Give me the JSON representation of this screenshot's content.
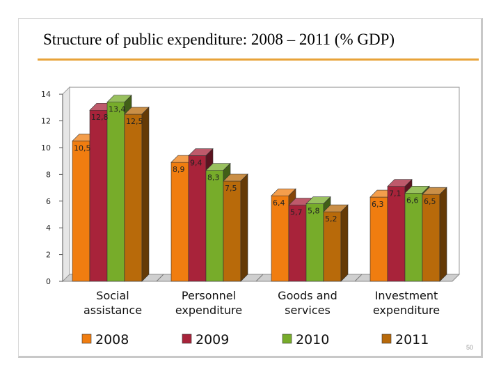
{
  "slide": {
    "title": "Structure of public expenditure: 2008 – 2011 (% GDP)",
    "page_number": "50"
  },
  "chart_data": {
    "type": "bar",
    "title": "",
    "xlabel": "",
    "ylabel": "",
    "ylim": [
      0,
      14
    ],
    "yticks": [
      0,
      2,
      4,
      6,
      8,
      10,
      12,
      14
    ],
    "categories": [
      [
        "Social",
        "assistance"
      ],
      [
        "Personnel",
        "expenditure"
      ],
      [
        "Goods and",
        "services"
      ],
      [
        "Investment",
        "expenditure"
      ]
    ],
    "series": [
      {
        "name": "2008",
        "color": "#f07d10",
        "values": [
          10.5,
          8.9,
          6.4,
          6.3
        ],
        "labels": [
          "10,5",
          "8,9",
          "6,4",
          "6,3"
        ]
      },
      {
        "name": "2009",
        "color": "#a8233a",
        "values": [
          12.8,
          9.4,
          5.7,
          7.1
        ],
        "labels": [
          "12,8",
          "9,4",
          "5,7",
          "7,1"
        ]
      },
      {
        "name": "2010",
        "color": "#77ac2a",
        "values": [
          13.4,
          8.3,
          5.8,
          6.6
        ],
        "labels": [
          "13,4",
          "8,3",
          "5,8",
          "6,6"
        ]
      },
      {
        "name": "2011",
        "color": "#b86a0a",
        "values": [
          12.5,
          7.5,
          5.2,
          6.5
        ],
        "labels": [
          "12,5",
          "7,5",
          "5,2",
          "6,5"
        ]
      }
    ],
    "grid": false,
    "legend_position": "bottom",
    "style": "3d-bar"
  }
}
